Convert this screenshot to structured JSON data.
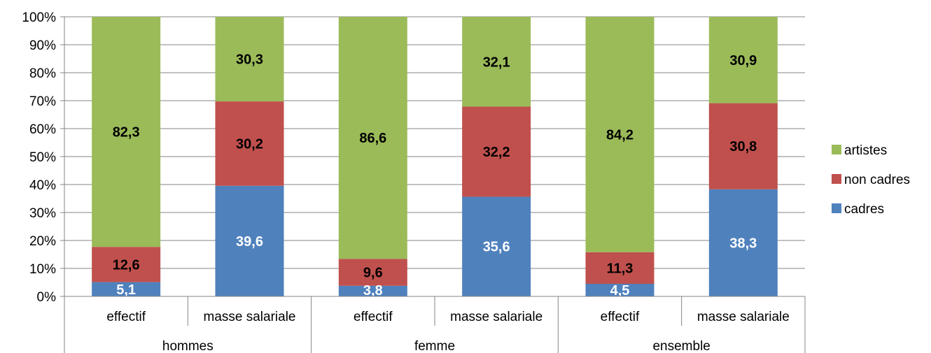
{
  "chart_data": {
    "type": "bar",
    "stacked": true,
    "percent_stacked": true,
    "ylim": [
      0,
      100
    ],
    "y_ticks": [
      "0%",
      "10%",
      "20%",
      "30%",
      "40%",
      "50%",
      "60%",
      "70%",
      "80%",
      "90%",
      "100%"
    ],
    "grid": true,
    "legend_position": "right",
    "groups": [
      "hommes",
      "femme",
      "ensemble"
    ],
    "categories": [
      "effectif",
      "masse salariale",
      "effectif",
      "masse salariale",
      "effectif",
      "masse salariale"
    ],
    "series": [
      {
        "name": "cadres",
        "color": "#4F81BD",
        "label_color": "#FFFFFF",
        "values": [
          5.1,
          39.6,
          3.8,
          35.6,
          4.5,
          38.3
        ],
        "labels": [
          "5,1",
          "39,6",
          "3,8",
          "35,6",
          "4,5",
          "38,3"
        ]
      },
      {
        "name": "non cadres",
        "color": "#C0504D",
        "label_color": "#000000",
        "values": [
          12.6,
          30.2,
          9.6,
          32.2,
          11.3,
          30.8
        ],
        "labels": [
          "12,6",
          "30,2",
          "9,6",
          "32,2",
          "11,3",
          "30,8"
        ]
      },
      {
        "name": "artistes",
        "color": "#9BBB59",
        "label_color": "#000000",
        "values": [
          82.3,
          30.3,
          86.6,
          32.1,
          84.2,
          30.9
        ],
        "labels": [
          "82,3",
          "30,3",
          "86,6",
          "32,1",
          "84,2",
          "30,9"
        ]
      }
    ]
  }
}
